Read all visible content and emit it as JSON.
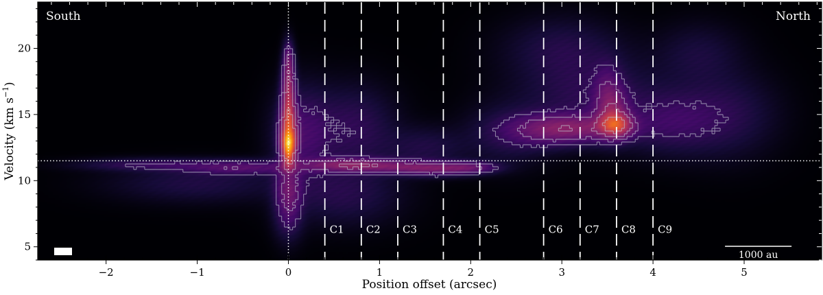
{
  "chart_data": {
    "type": "heatmap",
    "title": "",
    "xlabel": "Position offset (arcsec)",
    "ylabel": "Velocity (km s",
    "ylabel_sup": "−1",
    "ylabel_close": ")",
    "xlim": [
      -2.75,
      5.85
    ],
    "ylim": [
      4.0,
      23.5
    ],
    "x_ticks": [
      -2,
      -1,
      0,
      1,
      2,
      3,
      4,
      5
    ],
    "x_tick_labels": [
      "−2",
      "−1",
      "0",
      "1",
      "2",
      "3",
      "4",
      "5"
    ],
    "y_ticks": [
      5,
      10,
      15,
      20
    ],
    "y_tick_labels": [
      "5",
      "10",
      "15",
      "20"
    ],
    "colormap": "inferno",
    "background_color": "#000000",
    "corner_labels": {
      "left": "South",
      "right": "North"
    },
    "systemic_velocity": 11.5,
    "source_offset": 0,
    "cuts": [
      {
        "label": "C1",
        "x": 0.4
      },
      {
        "label": "C2",
        "x": 0.8
      },
      {
        "label": "C3",
        "x": 1.2
      },
      {
        "label": "C4",
        "x": 1.7
      },
      {
        "label": "C5",
        "x": 2.1
      },
      {
        "label": "C6",
        "x": 2.8
      },
      {
        "label": "C7",
        "x": 3.2
      },
      {
        "label": "C8",
        "x": 3.6
      },
      {
        "label": "C9",
        "x": 4.0
      }
    ],
    "cut_label_velocity": 6.3,
    "scale_bar": {
      "label": "1000 au",
      "x_range": [
        4.79,
        5.52
      ]
    },
    "emission": [
      {
        "x": 0.0,
        "v": 12.0,
        "sx": 0.05,
        "sv": 0.7,
        "a": 1.0
      },
      {
        "x": 0.0,
        "v": 13.0,
        "sx": 0.06,
        "sv": 0.6,
        "a": 0.9
      },
      {
        "x": 0.0,
        "v": 14.2,
        "sx": 0.06,
        "sv": 1.0,
        "a": 0.85
      },
      {
        "x": 0.0,
        "v": 16.5,
        "sx": 0.05,
        "sv": 1.4,
        "a": 0.75
      },
      {
        "x": 0.0,
        "v": 19.0,
        "sx": 0.04,
        "sv": 1.0,
        "a": 0.4
      },
      {
        "x": 0.0,
        "v": 9.5,
        "sx": 0.09,
        "sv": 1.2,
        "a": 0.35
      },
      {
        "x": 0.0,
        "v": 7.5,
        "sx": 0.1,
        "sv": 1.3,
        "a": 0.22
      },
      {
        "x": 0.15,
        "v": 13.5,
        "sx": 0.2,
        "sv": 2.2,
        "a": 0.25
      },
      {
        "x": 0.6,
        "v": 11.2,
        "sx": 0.3,
        "sv": 0.35,
        "a": 0.45
      },
      {
        "x": 1.1,
        "v": 11.1,
        "sx": 0.35,
        "sv": 0.35,
        "a": 0.35
      },
      {
        "x": 1.6,
        "v": 10.9,
        "sx": 0.3,
        "sv": 0.35,
        "a": 0.42
      },
      {
        "x": 2.0,
        "v": 11.0,
        "sx": 0.2,
        "sv": 0.3,
        "a": 0.32
      },
      {
        "x": -0.5,
        "v": 11.0,
        "sx": 0.4,
        "sv": 0.35,
        "a": 0.32
      },
      {
        "x": -1.5,
        "v": 11.2,
        "sx": 0.5,
        "sv": 0.3,
        "a": 0.2
      },
      {
        "x": -1.0,
        "v": 9.8,
        "sx": 0.6,
        "sv": 0.9,
        "a": 0.12
      },
      {
        "x": 0.7,
        "v": 14.0,
        "sx": 0.3,
        "sv": 2.0,
        "a": 0.18
      },
      {
        "x": 0.6,
        "v": 9.0,
        "sx": 0.4,
        "sv": 1.5,
        "a": 0.14
      },
      {
        "x": 3.6,
        "v": 14.2,
        "sx": 0.12,
        "sv": 0.6,
        "a": 0.75
      },
      {
        "x": 3.55,
        "v": 15.2,
        "sx": 0.12,
        "sv": 1.2,
        "a": 0.45
      },
      {
        "x": 3.5,
        "v": 17.0,
        "sx": 0.1,
        "sv": 1.3,
        "a": 0.2
      },
      {
        "x": 3.2,
        "v": 14.0,
        "sx": 0.35,
        "sv": 0.7,
        "a": 0.45
      },
      {
        "x": 2.8,
        "v": 13.8,
        "sx": 0.3,
        "sv": 0.8,
        "a": 0.28
      },
      {
        "x": 3.3,
        "v": 16.5,
        "sx": 0.5,
        "sv": 2.0,
        "a": 0.16
      },
      {
        "x": 3.0,
        "v": 20.0,
        "sx": 0.4,
        "sv": 1.5,
        "a": 0.12
      },
      {
        "x": 4.2,
        "v": 14.5,
        "sx": 0.35,
        "sv": 1.5,
        "a": 0.2
      },
      {
        "x": 4.8,
        "v": 15.0,
        "sx": 0.35,
        "sv": 2.0,
        "a": 0.14
      },
      {
        "x": 2.4,
        "v": 13.5,
        "sx": 0.3,
        "sv": 1.5,
        "a": 0.12
      },
      {
        "x": 4.5,
        "v": 19.5,
        "sx": 0.3,
        "sv": 1.5,
        "a": 0.1
      },
      {
        "x": 1.5,
        "v": 12.5,
        "sx": 0.3,
        "sv": 1.0,
        "a": 0.12
      }
    ]
  }
}
